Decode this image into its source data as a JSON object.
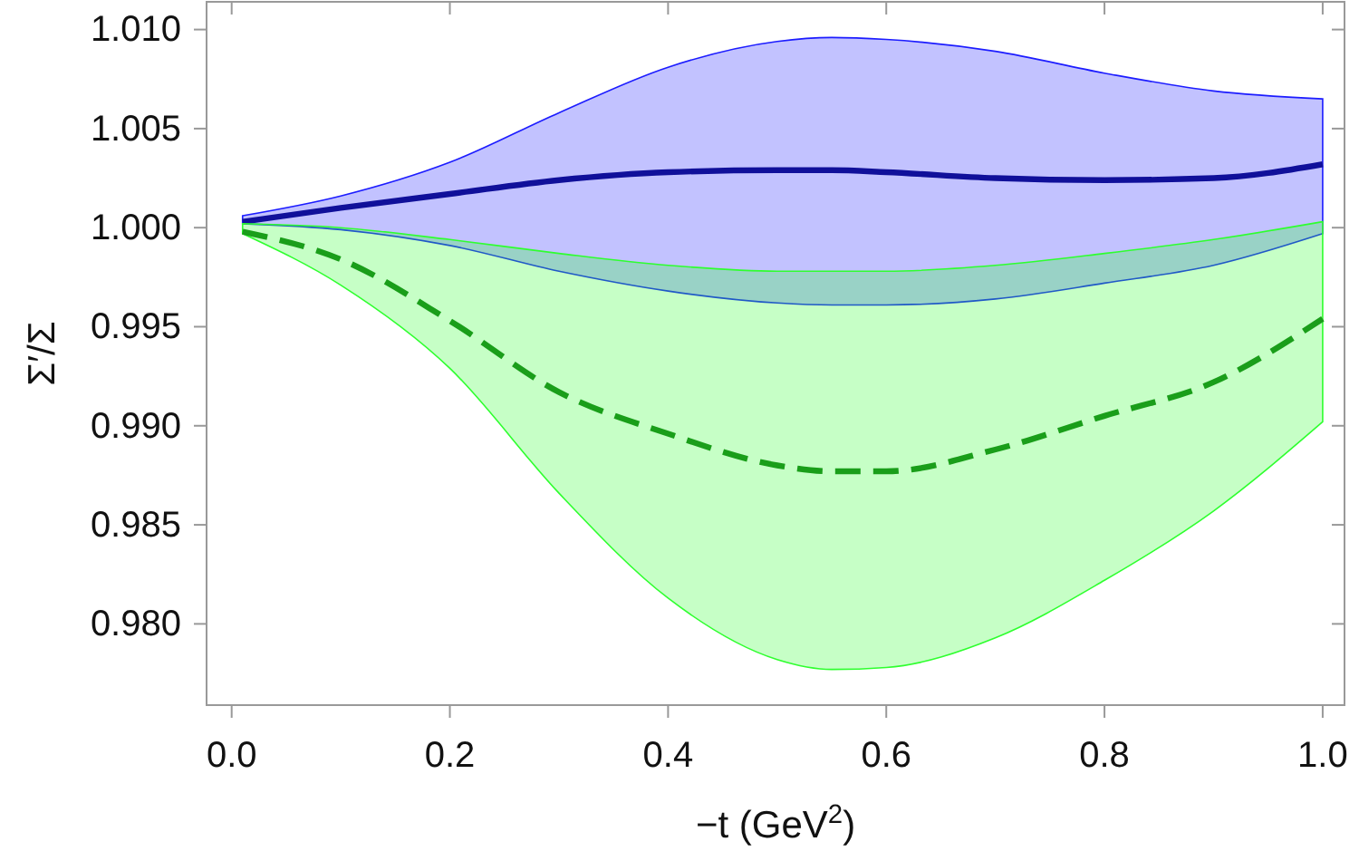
{
  "chart_data": {
    "type": "line",
    "xlabel": "−t (GeV$^{2}$)",
    "ylabel": "Σ′/Σ",
    "x": [
      0.01,
      0.1,
      0.2,
      0.3,
      0.4,
      0.5,
      0.55,
      0.6,
      0.7,
      0.8,
      0.9,
      1.0
    ],
    "series": [
      {
        "color": "#10109a",
        "line_style": "solid",
        "values": [
          1.0003,
          1.001,
          1.0017,
          1.0024,
          1.0028,
          1.0029,
          1.0029,
          1.0028,
          1.0025,
          1.0024,
          1.0025,
          1.0032
        ],
        "lower": [
          1.0002,
          0.9999,
          0.9991,
          0.9978,
          0.9968,
          0.9962,
          0.9961,
          0.9961,
          0.9964,
          0.9972,
          0.9981,
          0.9997
        ],
        "upper": [
          1.0006,
          1.0016,
          1.0033,
          1.0058,
          1.0081,
          1.0094,
          1.0096,
          1.0095,
          1.0089,
          1.0078,
          1.0069,
          1.0065
        ]
      },
      {
        "color": "#1a9e1a",
        "line_style": "dashed",
        "values": [
          0.9998,
          0.9984,
          0.9953,
          0.9917,
          0.9896,
          0.988,
          0.9877,
          0.9877,
          0.9888,
          0.9905,
          0.9922,
          0.9954
        ],
        "lower": [
          0.9997,
          0.9971,
          0.9929,
          0.9866,
          0.9813,
          0.9782,
          0.9777,
          0.9778,
          0.9793,
          0.9822,
          0.9857,
          0.9902
        ],
        "upper": [
          1.0002,
          1.0,
          0.9994,
          0.9987,
          0.9981,
          0.9978,
          0.9978,
          0.9978,
          0.9981,
          0.9987,
          0.9994,
          1.0003
        ]
      }
    ],
    "xlim": [
      -0.023,
      1.02
    ],
    "ylim": [
      0.9759,
      1.0114
    ],
    "xticks": [
      {
        "value": 0,
        "label": "0.0"
      },
      0.2,
      0.4,
      0.6,
      0.8,
      {
        "value": 1,
        "label": "1.0"
      }
    ],
    "yticks": [
      {
        "value": 0.98,
        "label": "0.980"
      },
      0.985,
      {
        "value": 0.99,
        "label": "0.990"
      },
      0.995,
      {
        "value": 1,
        "label": "1.000"
      },
      1.005,
      {
        "value": 1.01,
        "label": "1.010"
      }
    ],
    "grid": false,
    "marker": "none"
  }
}
